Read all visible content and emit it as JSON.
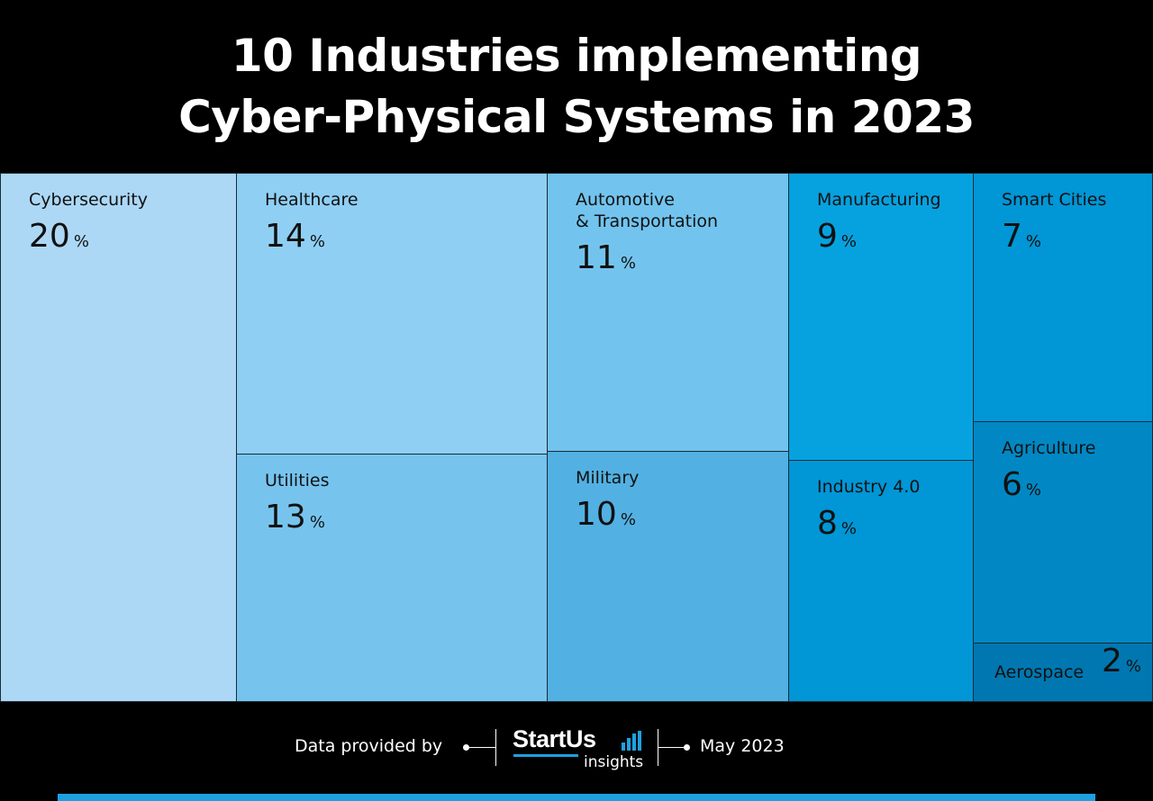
{
  "title": {
    "line1": "10 Industries implementing",
    "line2": "Cyber-Physical Systems in 2023"
  },
  "chart_data": {
    "type": "treemap",
    "unit": "%",
    "items": [
      {
        "name": "Cybersecurity",
        "value": 20,
        "color": "#acd8f6"
      },
      {
        "name": "Healthcare",
        "value": 14,
        "color": "#8fcff4"
      },
      {
        "name": "Utilities",
        "value": 13,
        "color": "#76c4ee"
      },
      {
        "name": "Automotive\n& Transportation",
        "value": 11,
        "color": "#72c4ee"
      },
      {
        "name": "Military",
        "value": 10,
        "color": "#52b1e2"
      },
      {
        "name": "Manufacturing",
        "value": 9,
        "color": "#06a2e0"
      },
      {
        "name": "Industry 4.0",
        "value": 8,
        "color": "#0196d6"
      },
      {
        "name": "Smart Cities",
        "value": 7,
        "color": "#0196d6"
      },
      {
        "name": "Agriculture",
        "value": 6,
        "color": "#0188c4"
      },
      {
        "name": "Aerospace",
        "value": 2,
        "color": "#0077b0"
      }
    ]
  },
  "footer": {
    "provided_by": "Data provided by",
    "logo_main": "StartUs",
    "logo_sub": "insights",
    "date": "May 2023"
  },
  "colors": {
    "background": "#000000",
    "accent": "#1ea0e0"
  }
}
